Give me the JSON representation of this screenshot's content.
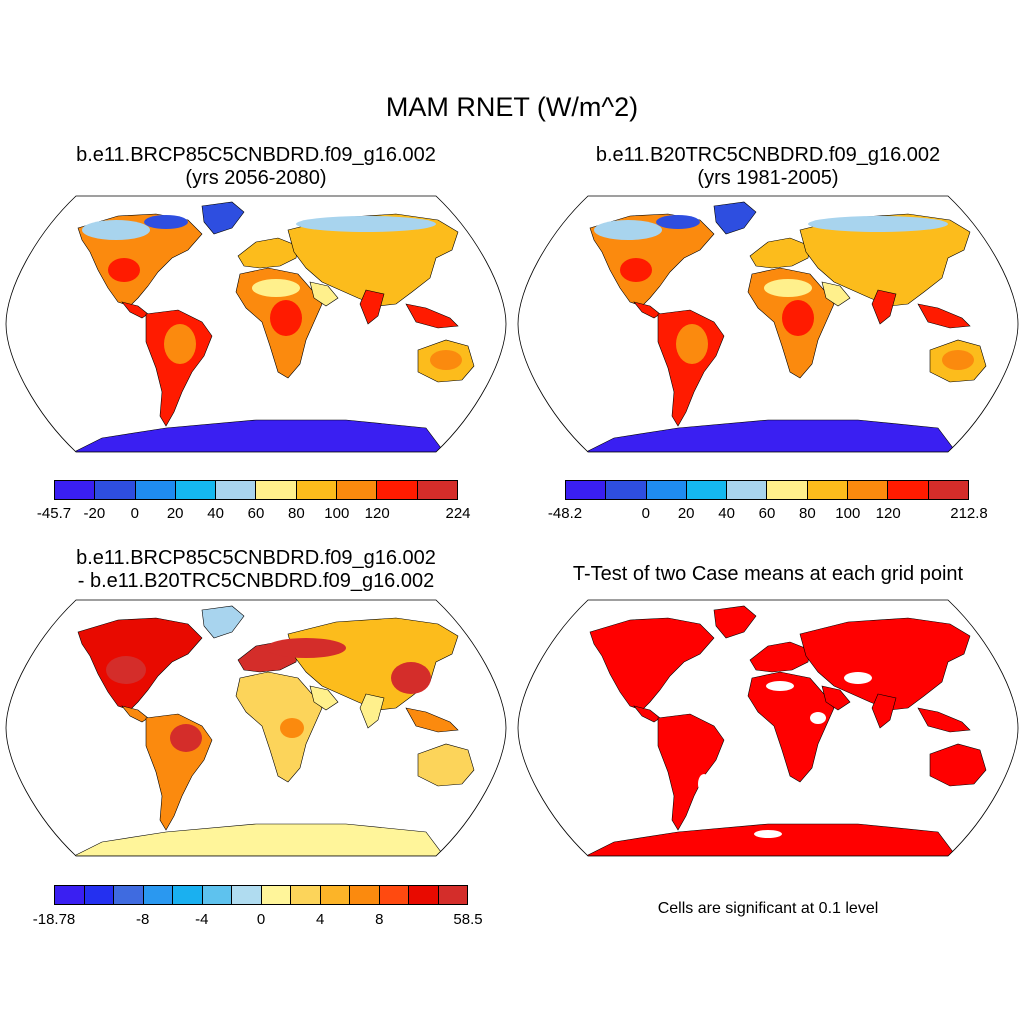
{
  "title": "MAM RNET (W/m^2)",
  "panels": [
    {
      "id": "case1",
      "title_line1": "b.e11.BRCP85C5CNBDRD.f09_g16.002",
      "title_line2": "(yrs 2056-2080)",
      "colorbar": {
        "colors": [
          "#3a1ff2",
          "#2e4ee0",
          "#1f8cf0",
          "#15b8f0",
          "#a8d4ee",
          "#fff08c",
          "#fcbc1c",
          "#fb8a0e",
          "#ff1b00",
          "#d42d2a"
        ],
        "labels": [
          "-45.7",
          "-20",
          "0",
          "20",
          "40",
          "60",
          "80",
          "100",
          "120",
          "224"
        ]
      }
    },
    {
      "id": "case2",
      "title_line1": "b.e11.B20TRC5CNBDRD.f09_g16.002",
      "title_line2": "(yrs 1981-2005)",
      "colorbar": {
        "colors": [
          "#3a1ff2",
          "#2e4ee0",
          "#1f8cf0",
          "#15b8f0",
          "#a8d4ee",
          "#fff08c",
          "#fcbc1c",
          "#fb8a0e",
          "#ff1b00",
          "#d42d2a"
        ],
        "labels": [
          "-48.2",
          "0",
          "20",
          "40",
          "60",
          "80",
          "100",
          "120",
          "212.8"
        ]
      }
    },
    {
      "id": "diff",
      "title_line1": "b.e11.BRCP85C5CNBDRD.f09_g16.002",
      "title_line2": "- b.e11.B20TRC5CNBDRD.f09_g16.002",
      "colorbar": {
        "colors": [
          "#3a1ff2",
          "#2430f0",
          "#3f6be0",
          "#2a98f0",
          "#1ab0f0",
          "#5ec2ee",
          "#b0dcf0",
          "#fff59a",
          "#fcd45a",
          "#fcb428",
          "#fb8a0e",
          "#ff4a10",
          "#e80a00",
          "#d42d2a"
        ],
        "labels": [
          "-18.78",
          "-8",
          "-4",
          "0",
          "4",
          "8",
          "58.5"
        ]
      }
    },
    {
      "id": "ttest",
      "title_line1": "T-Test of two Case means at each grid point",
      "significance_color": "#ff0000",
      "note": "Cells are significant at 0.1 level"
    }
  ],
  "fill_colors": {
    "ocean": "#ffffff",
    "antarctic": "#3a1ff2",
    "arctic": "#2e4ee0",
    "hot": "#ff1b00",
    "warm": "#fb8a0e",
    "mild": "#fcbc1c",
    "cool": "#fff08c",
    "pale": "#a8d4ee"
  }
}
